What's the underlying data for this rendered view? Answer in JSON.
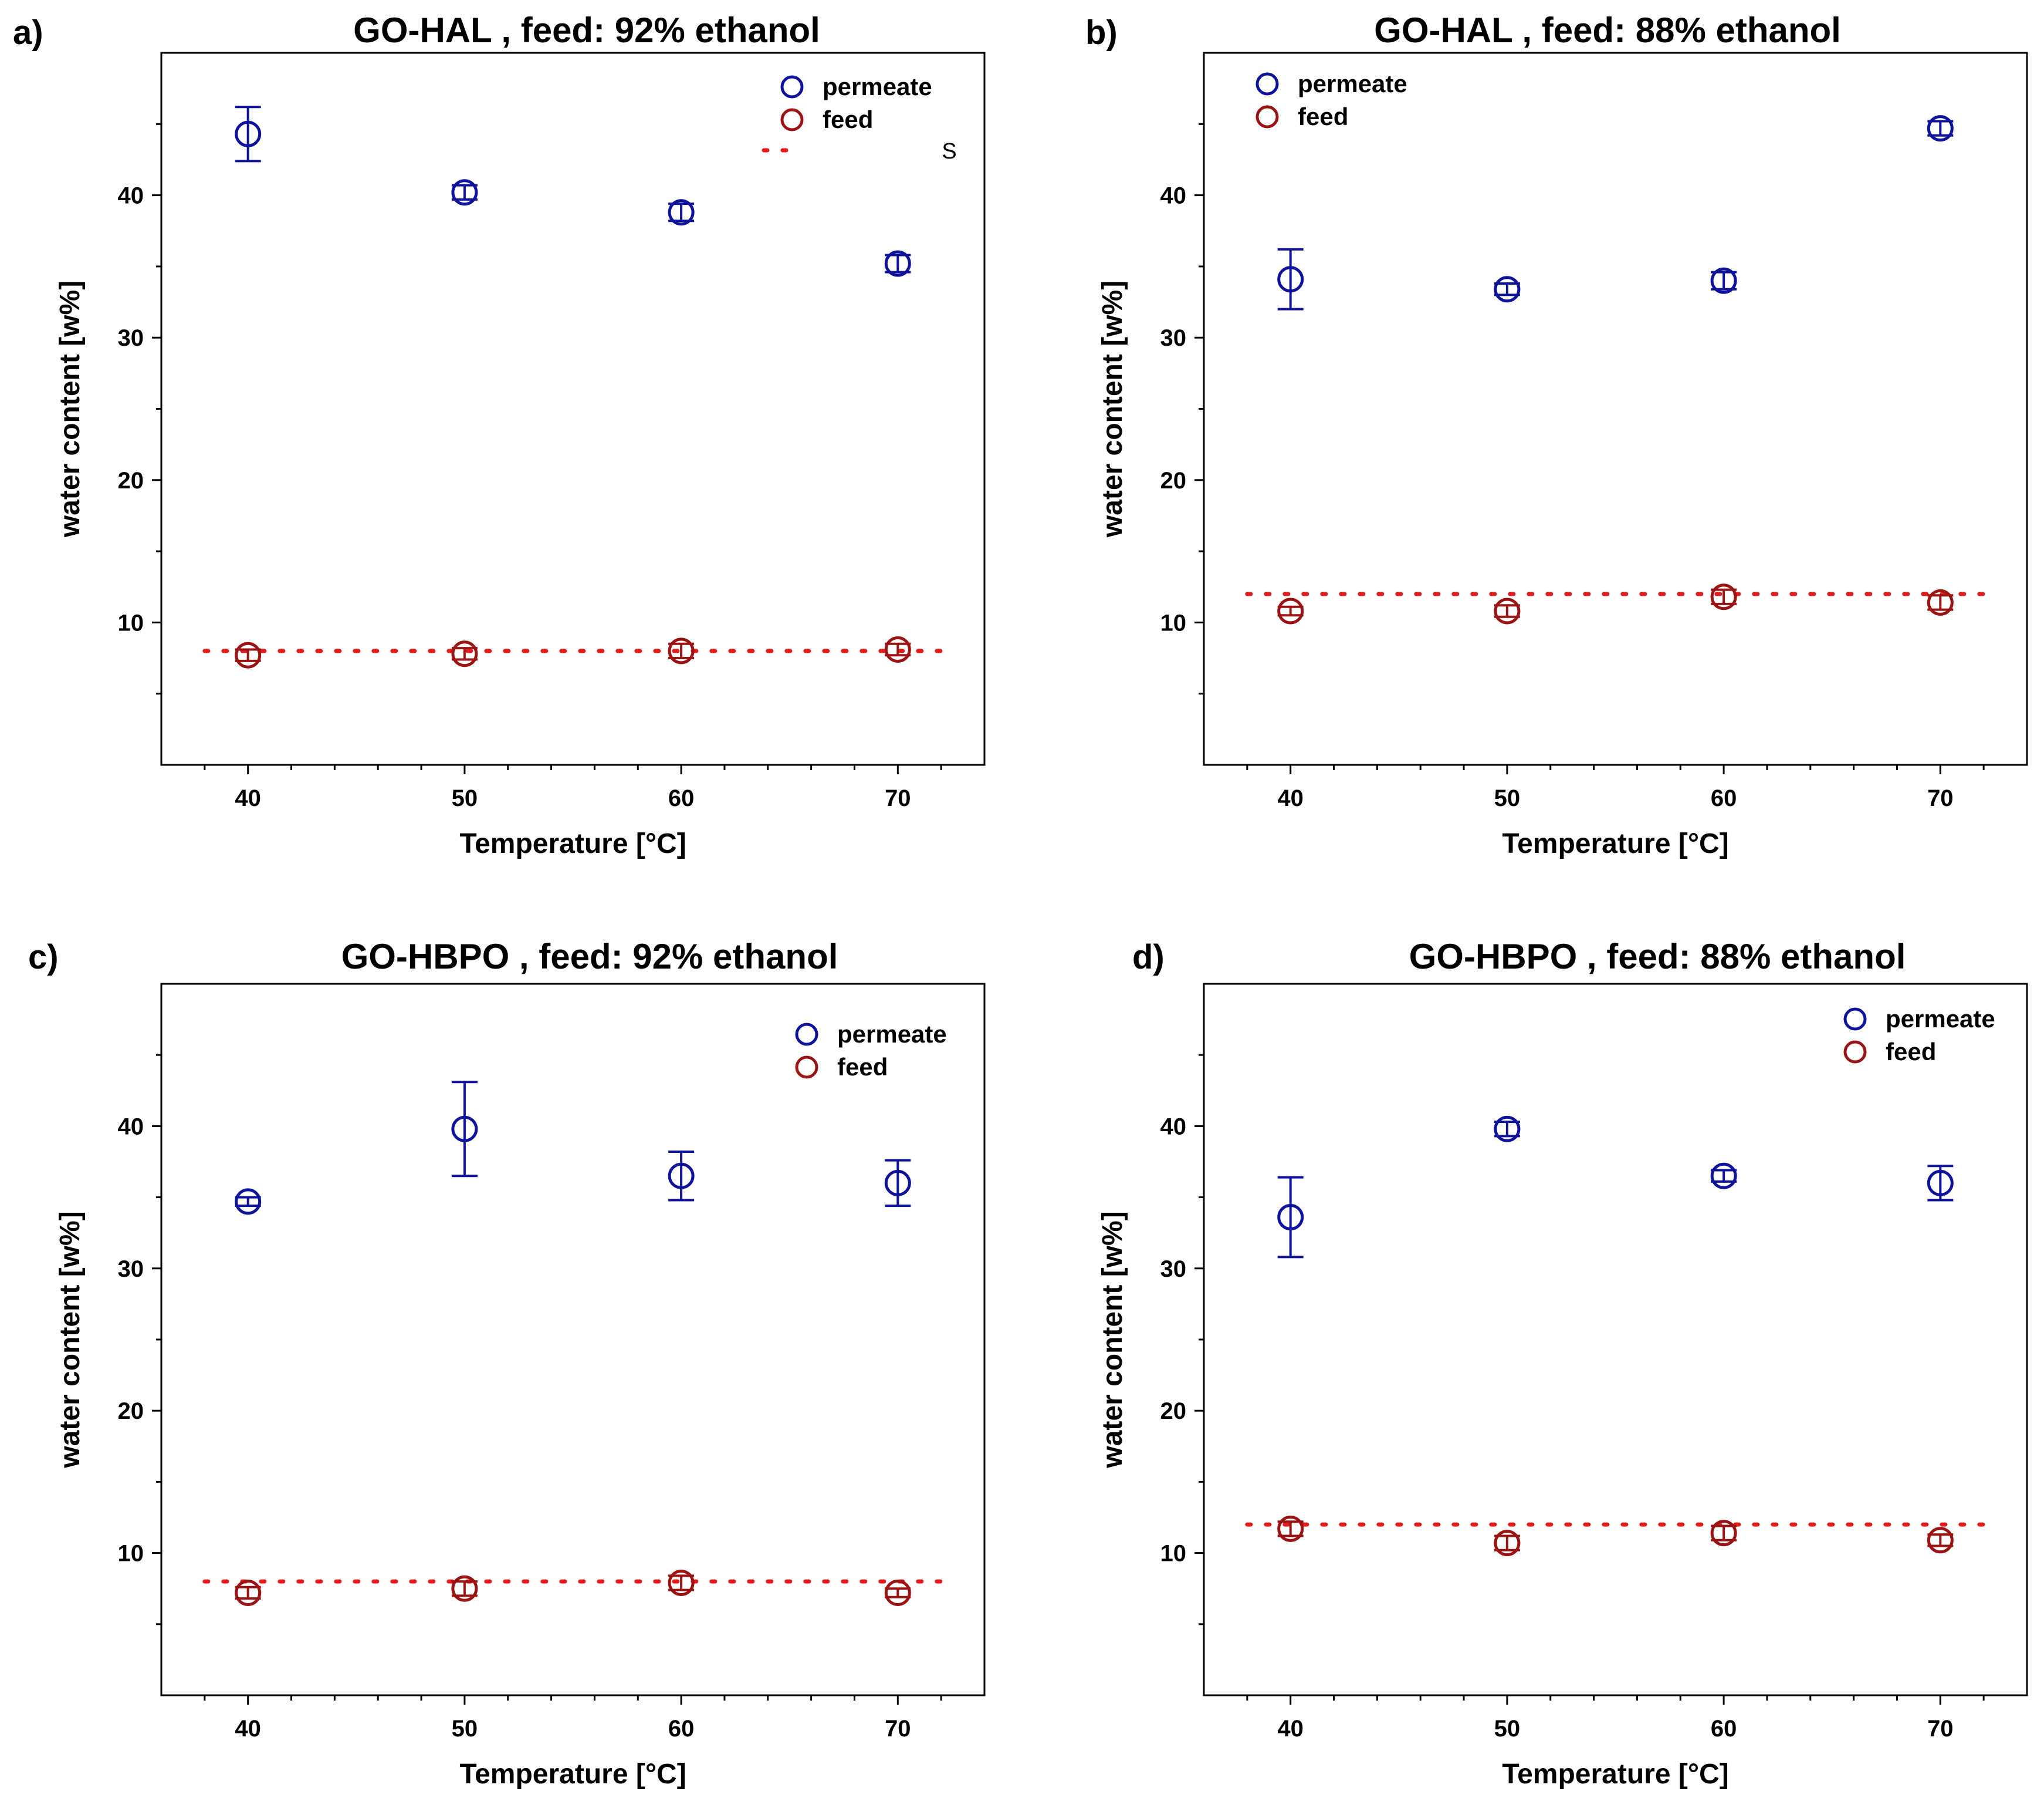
{
  "colors": {
    "permeate": "#0f139c",
    "feed": "#9b1414",
    "reference": "#e51a1a",
    "axis": "#000000"
  },
  "chart_data": [
    {
      "type": "scatter",
      "panel_label": "a)",
      "title": "GO-HAL ,  feed: 92% ethanol",
      "xlabel": "Temperature [°C]",
      "ylabel": "water content [w%]",
      "xlim": [
        36,
        74
      ],
      "ylim": [
        0,
        50
      ],
      "xticks": [
        40,
        50,
        60,
        70
      ],
      "yticks": [
        10,
        20,
        30,
        40
      ],
      "reference_line": {
        "y": 8,
        "style": "dotted"
      },
      "legend": {
        "position": "top-right",
        "entries": [
          "permeate",
          "feed"
        ],
        "extra_text": "S"
      },
      "series": [
        {
          "name": "permeate",
          "x": [
            40,
            50,
            60,
            70
          ],
          "y": [
            44.3,
            40.2,
            38.8,
            35.2
          ],
          "err": [
            1.9,
            0.5,
            0.6,
            0.6
          ]
        },
        {
          "name": "feed",
          "x": [
            40,
            50,
            60,
            70
          ],
          "y": [
            7.7,
            7.8,
            8.0,
            8.1
          ],
          "err": [
            0.4,
            0.4,
            0.5,
            0.4
          ]
        }
      ]
    },
    {
      "type": "scatter",
      "panel_label": "b)",
      "title": "GO-HAL , feed: 88% ethanol",
      "xlabel": "Temperature [°C]",
      "ylabel": "water content [w%]",
      "xlim": [
        36,
        74
      ],
      "ylim": [
        0,
        50
      ],
      "xticks": [
        40,
        50,
        60,
        70
      ],
      "yticks": [
        10,
        20,
        30,
        40
      ],
      "reference_line": {
        "y": 12,
        "style": "dotted"
      },
      "legend": {
        "position": "top-left",
        "entries": [
          "permeate",
          "feed"
        ]
      },
      "series": [
        {
          "name": "permeate",
          "x": [
            40,
            50,
            60,
            70
          ],
          "y": [
            34.1,
            33.4,
            34.0,
            44.7
          ],
          "err": [
            2.1,
            0.4,
            0.6,
            0.5
          ]
        },
        {
          "name": "feed",
          "x": [
            40,
            50,
            60,
            70
          ],
          "y": [
            10.8,
            10.8,
            11.8,
            11.4
          ],
          "err": [
            0.3,
            0.4,
            0.5,
            0.5
          ]
        }
      ]
    },
    {
      "type": "scatter",
      "panel_label": "c)",
      "title": "GO-HBPO ,  feed: 92% ethanol",
      "xlabel": "Temperature [°C]",
      "ylabel": "water content [w%]",
      "xlim": [
        36,
        74
      ],
      "ylim": [
        0,
        50
      ],
      "xticks": [
        40,
        50,
        60,
        70
      ],
      "yticks": [
        10,
        20,
        30,
        40
      ],
      "reference_line": {
        "y": 8,
        "style": "dotted"
      },
      "legend": {
        "position": "top-right",
        "entries": [
          "permeate",
          "feed"
        ]
      },
      "series": [
        {
          "name": "permeate",
          "x": [
            40,
            50,
            60,
            70
          ],
          "y": [
            34.7,
            39.8,
            36.5,
            36.0
          ],
          "err": [
            0.3,
            3.3,
            1.7,
            1.6
          ]
        },
        {
          "name": "feed",
          "x": [
            40,
            50,
            60,
            70
          ],
          "y": [
            7.2,
            7.5,
            7.9,
            7.2
          ],
          "err": [
            0.4,
            0.5,
            0.5,
            0.3
          ]
        }
      ]
    },
    {
      "type": "scatter",
      "panel_label": "d)",
      "title": "GO-HBPO , feed: 88% ethanol",
      "xlabel": "Temperature [°C]",
      "ylabel": "water content [w%]",
      "xlim": [
        36,
        74
      ],
      "ylim": [
        0,
        50
      ],
      "xticks": [
        40,
        50,
        60,
        70
      ],
      "yticks": [
        10,
        20,
        30,
        40
      ],
      "reference_line": {
        "y": 12,
        "style": "dotted"
      },
      "legend": {
        "position": "top-right",
        "entries": [
          "permeate",
          "feed"
        ]
      },
      "series": [
        {
          "name": "permeate",
          "x": [
            40,
            50,
            60,
            70
          ],
          "y": [
            33.6,
            39.8,
            36.5,
            36.0
          ],
          "err": [
            2.8,
            0.5,
            0.4,
            1.2
          ]
        },
        {
          "name": "feed",
          "x": [
            40,
            50,
            60,
            70
          ],
          "y": [
            11.7,
            10.7,
            11.4,
            10.9
          ],
          "err": [
            0.5,
            0.5,
            0.5,
            0.4
          ]
        }
      ]
    }
  ]
}
